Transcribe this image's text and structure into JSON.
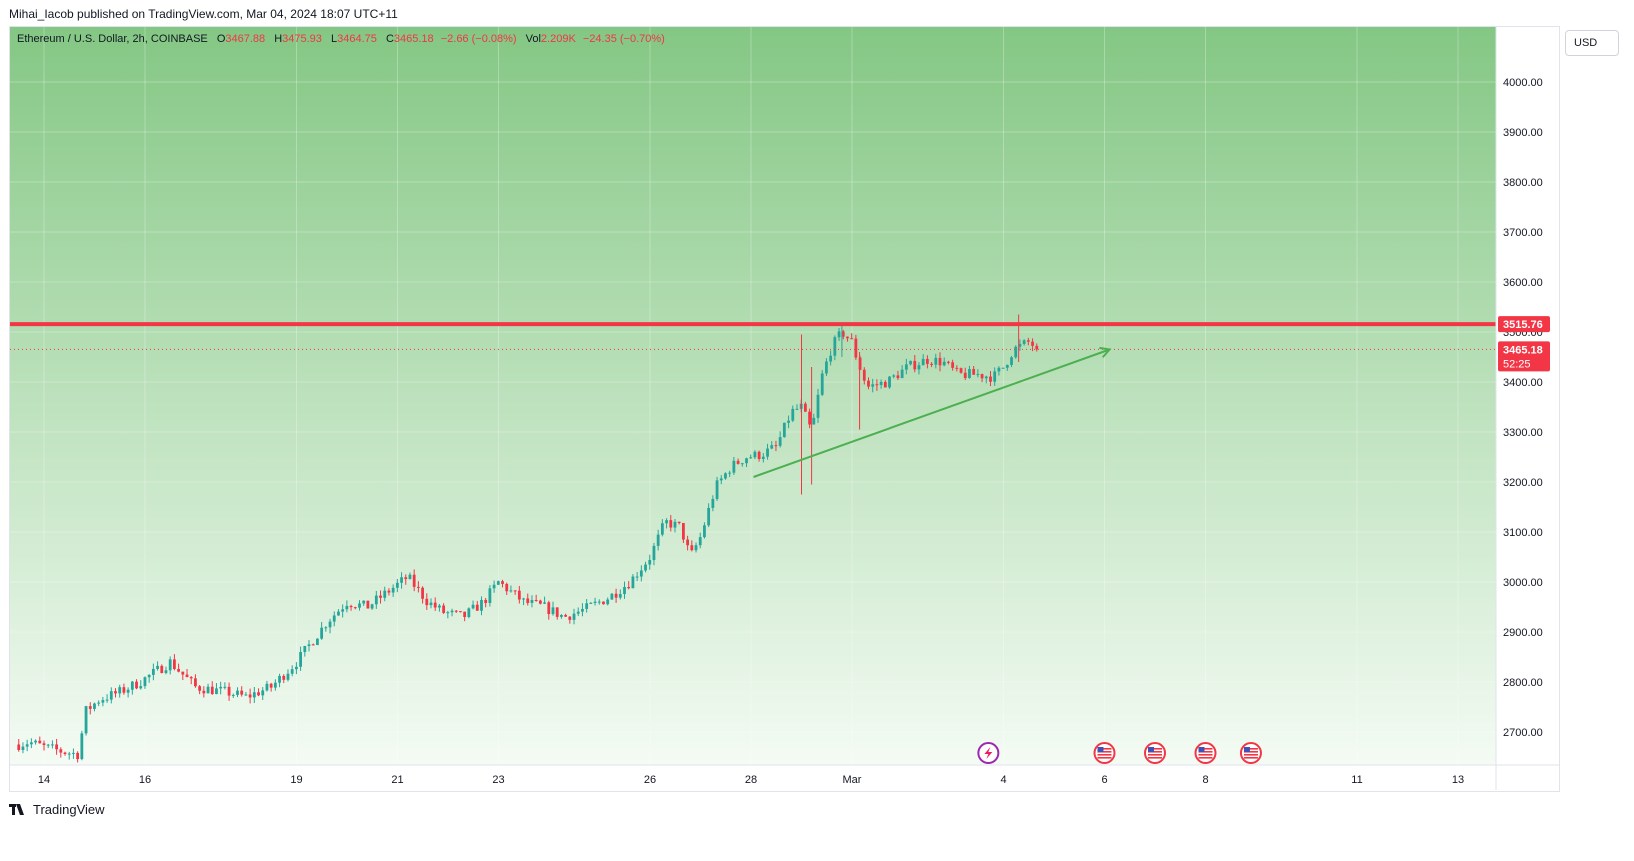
{
  "header": {
    "published_line": "Mihai_Iacob published on TradingView.com, Mar 04, 2024 18:07 UTC+11"
  },
  "legend": {
    "symbol": "Ethereum / U.S. Dollar, 2h, COINBASE",
    "o_label": "O",
    "o_value": "3467.88",
    "h_label": "H",
    "h_value": "3475.93",
    "l_label": "L",
    "l_value": "3464.75",
    "c_label": "C",
    "c_value": "3465.18",
    "change": "−2.66 (−0.08%)",
    "vol_label": "Vol",
    "vol_value": "2.209K",
    "vol_change": "−24.35 (−0.70%)"
  },
  "currency_button": "USD",
  "footer": {
    "brand": "TradingView"
  },
  "colors": {
    "up": "#26a69a",
    "down": "#f23645",
    "resistance": "#f23645",
    "trend": "#4caf50",
    "bg_top": "#84c784",
    "bg_bottom": "#f4fbf4",
    "price_tag": "#f23645"
  },
  "chart_data": {
    "type": "candlestick",
    "ylim": [
      2650,
      4100
    ],
    "y_ticks": [
      "2700.00",
      "2800.00",
      "2900.00",
      "3000.00",
      "3100.00",
      "3200.00",
      "3300.00",
      "3400.00",
      "3500.00",
      "3600.00",
      "3700.00",
      "3800.00",
      "3900.00",
      "4000.00"
    ],
    "x_range_days": [
      13.5,
      57.1
    ],
    "x_ticks": [
      {
        "label": "14",
        "day": 14
      },
      {
        "label": "16",
        "day": 16
      },
      {
        "label": "19",
        "day": 19
      },
      {
        "label": "21",
        "day": 21
      },
      {
        "label": "23",
        "day": 23
      },
      {
        "label": "26",
        "day": 26
      },
      {
        "label": "28",
        "day": 28
      },
      {
        "label": "Mar",
        "day": 30
      },
      {
        "label": "4",
        "day": 33
      },
      {
        "label": "6",
        "day": 35
      },
      {
        "label": "8",
        "day": 37
      },
      {
        "label": "11",
        "day": 40
      },
      {
        "label": "13",
        "day": 42
      }
    ],
    "resistance_line": {
      "value": 3515.76,
      "label": "3515.76"
    },
    "last_price": {
      "value": 3465.18,
      "label": "3465.18",
      "countdown": "52:25"
    },
    "trend_arrow": {
      "start": {
        "day": 28.05,
        "price": 3210
      },
      "end": {
        "day": 35.1,
        "price": 3465
      }
    },
    "event_icons": [
      {
        "icon": "lightning-icon",
        "day": 32.7
      },
      {
        "icon": "us-flag-icon",
        "day": 35.0
      },
      {
        "icon": "us-flag-icon",
        "day": 36.0
      },
      {
        "icon": "us-flag-icon",
        "day": 37.0
      },
      {
        "icon": "us-flag-icon",
        "day": 37.9
      }
    ],
    "candles_start_day": 13.5,
    "candle_interval_days": 0.0833,
    "close_path_anchors": [
      [
        13.5,
        2675
      ],
      [
        13.7,
        2680
      ],
      [
        14.0,
        2670
      ],
      [
        14.4,
        2660
      ],
      [
        14.7,
        2655
      ],
      [
        14.8,
        2740
      ],
      [
        15.1,
        2765
      ],
      [
        15.5,
        2780
      ],
      [
        15.9,
        2800
      ],
      [
        16.2,
        2820
      ],
      [
        16.5,
        2840
      ],
      [
        17.0,
        2790
      ],
      [
        17.3,
        2785
      ],
      [
        17.6,
        2780
      ],
      [
        18.0,
        2770
      ],
      [
        18.5,
        2790
      ],
      [
        19.0,
        2840
      ],
      [
        19.3,
        2880
      ],
      [
        19.6,
        2920
      ],
      [
        20.0,
        2960
      ],
      [
        20.4,
        2950
      ],
      [
        20.8,
        2980
      ],
      [
        21.2,
        3010
      ],
      [
        21.6,
        2960
      ],
      [
        21.9,
        2940
      ],
      [
        22.3,
        2930
      ],
      [
        22.7,
        2960
      ],
      [
        23.0,
        3000
      ],
      [
        23.5,
        2960
      ],
      [
        23.9,
        2950
      ],
      [
        24.3,
        2930
      ],
      [
        24.7,
        2945
      ],
      [
        25.2,
        2970
      ],
      [
        25.6,
        3000
      ],
      [
        26.0,
        3050
      ],
      [
        26.3,
        3120
      ],
      [
        26.6,
        3110
      ],
      [
        26.8,
        3050
      ],
      [
        27.0,
        3090
      ],
      [
        27.3,
        3190
      ],
      [
        27.6,
        3230
      ],
      [
        27.9,
        3250
      ],
      [
        28.2,
        3255
      ],
      [
        28.5,
        3270
      ],
      [
        28.8,
        3340
      ],
      [
        29.0,
        3350
      ],
      [
        29.2,
        3300
      ],
      [
        29.4,
        3410
      ],
      [
        29.6,
        3470
      ],
      [
        29.8,
        3500
      ],
      [
        30.0,
        3480
      ],
      [
        30.1,
        3445
      ],
      [
        30.3,
        3390
      ],
      [
        30.7,
        3400
      ],
      [
        31.1,
        3430
      ],
      [
        31.5,
        3445
      ],
      [
        31.8,
        3440
      ],
      [
        32.1,
        3415
      ],
      [
        32.5,
        3415
      ],
      [
        32.8,
        3410
      ],
      [
        33.0,
        3430
      ],
      [
        33.2,
        3465
      ],
      [
        33.5,
        3480
      ],
      [
        33.7,
        3465
      ]
    ]
  }
}
